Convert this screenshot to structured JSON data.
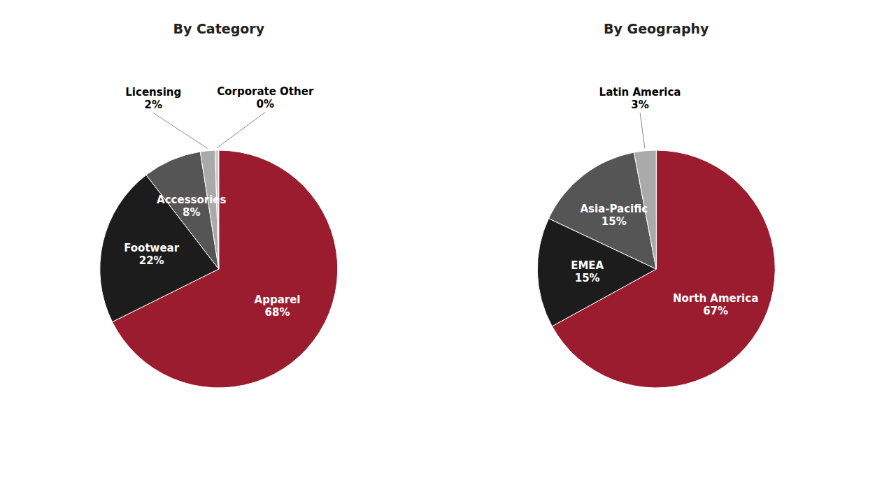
{
  "chart_data": [
    {
      "type": "pie",
      "title": "By Category",
      "categories": [
        "Apparel",
        "Footwear",
        "Accessories",
        "Licensing",
        "Corporate Other"
      ],
      "values": [
        68,
        22,
        8,
        2,
        0.5
      ],
      "value_labels": [
        "68%",
        "22%",
        "8%",
        "2%",
        "0%"
      ],
      "colors": [
        "#9B1C2E",
        "#1C1C1C",
        "#555555",
        "#AAAAAA",
        "#CCCCCC"
      ]
    },
    {
      "type": "pie",
      "title": "By Geography",
      "categories": [
        "North America",
        "EMEA",
        "Asia-Pacific",
        "Latin America"
      ],
      "values": [
        67,
        15,
        15,
        3
      ],
      "value_labels": [
        "67%",
        "15%",
        "15%",
        "3%"
      ],
      "colors": [
        "#9B1C2E",
        "#1C1C1C",
        "#555555",
        "#AAAAAA"
      ]
    }
  ]
}
